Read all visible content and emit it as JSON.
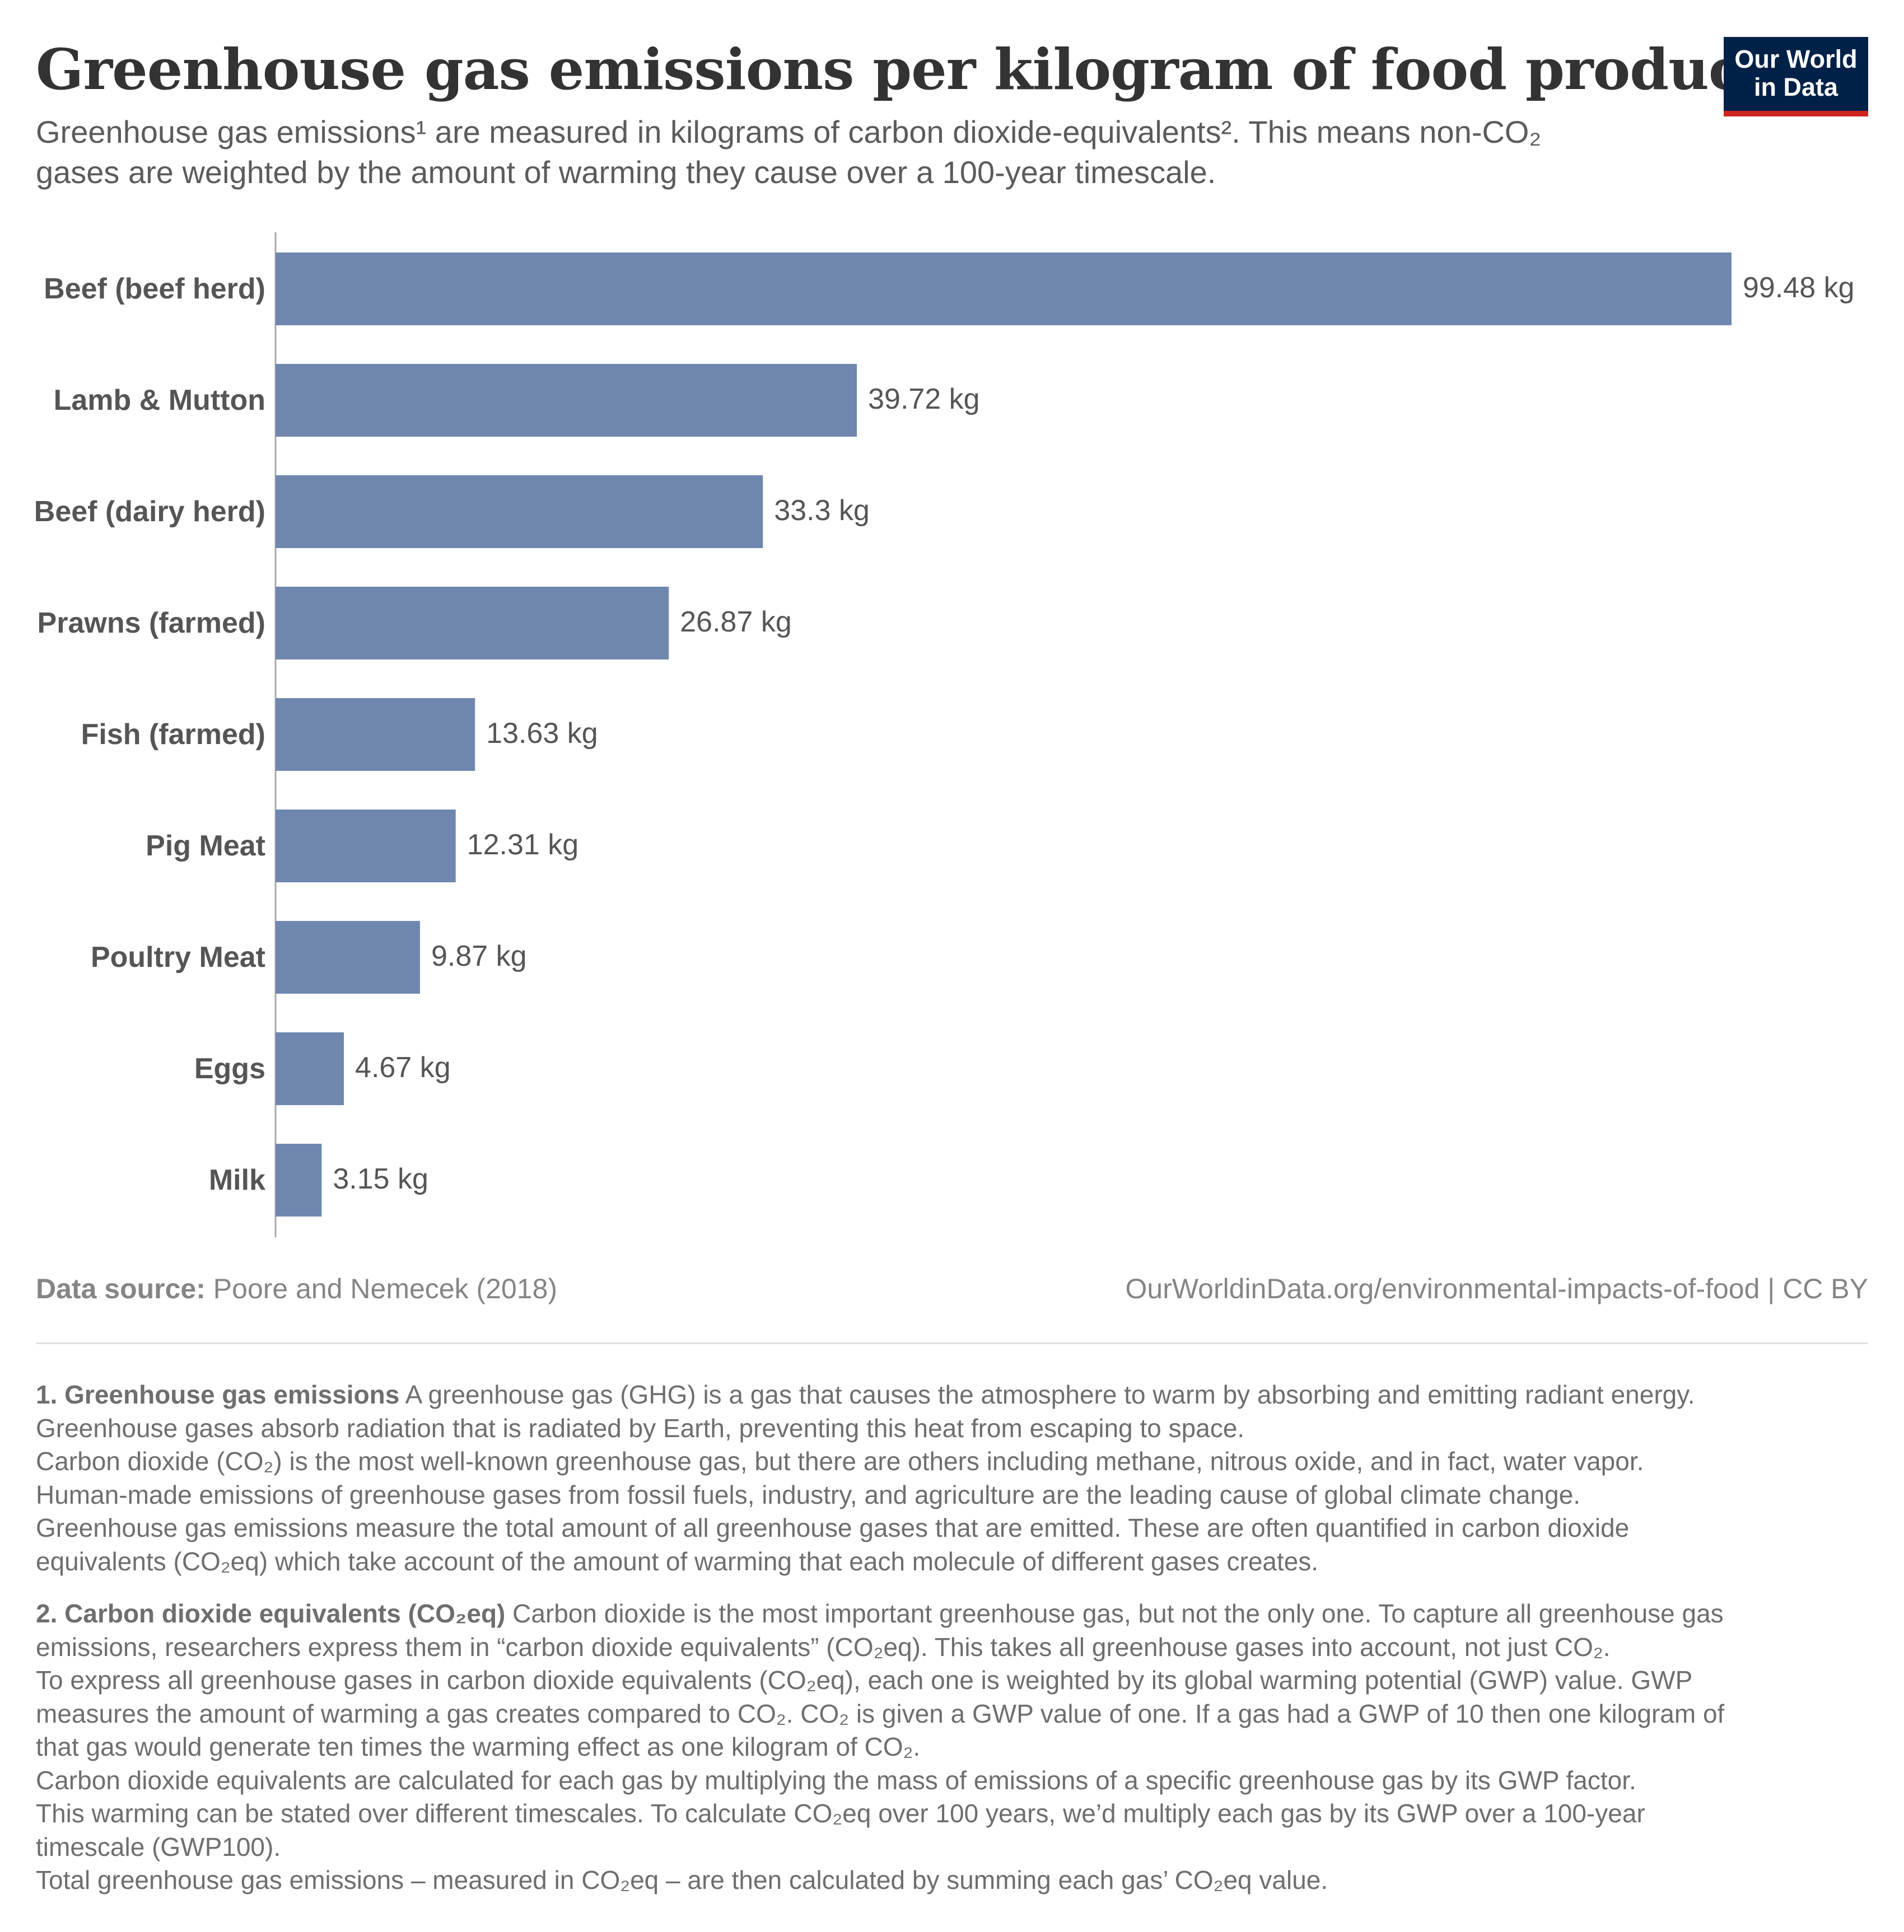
{
  "header": {
    "title": "Greenhouse gas emissions per kilogram of food product",
    "subtitle_lines": [
      "Greenhouse gas emissions¹ are measured in kilograms of carbon dioxide-equivalents². This means non-CO₂",
      "gases are weighted by the amount of warming they cause over a 100-year timescale."
    ]
  },
  "logo": {
    "line1": "Our World",
    "line2": "in Data",
    "background": "#002147",
    "accent": "#ce261e"
  },
  "chart_data": {
    "type": "bar",
    "orientation": "horizontal",
    "categories": [
      "Beef (beef herd)",
      "Lamb & Mutton",
      "Beef (dairy herd)",
      "Prawns (farmed)",
      "Fish (farmed)",
      "Pig Meat",
      "Poultry Meat",
      "Eggs",
      "Milk"
    ],
    "values": [
      99.48,
      39.72,
      33.3,
      26.87,
      13.63,
      12.31,
      9.87,
      4.67,
      3.15
    ],
    "value_labels": [
      "99.48 kg",
      "39.72 kg",
      "33.3 kg",
      "26.87 kg",
      "13.63 kg",
      "12.31 kg",
      "9.87 kg",
      "4.67 kg",
      "3.15 kg"
    ],
    "unit": "kg",
    "xlim": [
      0,
      99.48
    ],
    "grid": false,
    "bar_color": "#6f87af"
  },
  "footer": {
    "source_label": "Data source:",
    "source_text": "Poore and Nemecek (2018)",
    "license": "OurWorldinData.org/environmental-impacts-of-food | CC BY"
  },
  "notes": {
    "note1": {
      "heading": "1. Greenhouse gas emissions",
      "first_line_rest": "A greenhouse gas (GHG) is a gas that causes the atmosphere to warm by absorbing and emitting radiant energy.",
      "lines": [
        "Greenhouse gases absorb radiation that is radiated by Earth, preventing this heat from escaping to space.",
        "Carbon dioxide (CO₂) is the most well-known greenhouse gas, but there are others including methane, nitrous oxide, and in fact, water vapor.",
        "Human-made emissions of greenhouse gases from fossil fuels, industry, and agriculture are the leading cause of global climate change.",
        "Greenhouse gas emissions measure the total amount of all greenhouse gases that are emitted. These are often quantified in carbon dioxide",
        "equivalents (CO₂eq) which take account of the amount of warming that each molecule of different gases creates."
      ]
    },
    "note2": {
      "heading": "2. Carbon dioxide equivalents (CO₂eq)",
      "first_line_rest": "Carbon dioxide is the most important greenhouse gas, but not the only one. To capture all greenhouse gas",
      "lines": [
        "emissions, researchers express them in “carbon dioxide equivalents” (CO₂eq). This takes all greenhouse gases into account, not just CO₂.",
        "To express all greenhouse gases in carbon dioxide equivalents (CO₂eq), each one is weighted by its global warming potential (GWP) value. GWP",
        "measures the amount of warming a gas creates compared to CO₂. CO₂ is given a GWP value of one. If a gas had a GWP of 10 then one kilogram of",
        "that gas would generate ten times the warming effect as one kilogram of CO₂.",
        "Carbon dioxide equivalents are calculated for each gas by multiplying the mass of emissions of a specific greenhouse gas by its GWP factor.",
        "This warming can be stated over different timescales. To calculate CO₂eq over 100 years, we’d multiply each gas by its GWP over a 100-year",
        "timescale (GWP100).",
        "Total greenhouse gas emissions – measured in CO₂eq – are then calculated by summing each gas’ CO₂eq value."
      ]
    }
  }
}
